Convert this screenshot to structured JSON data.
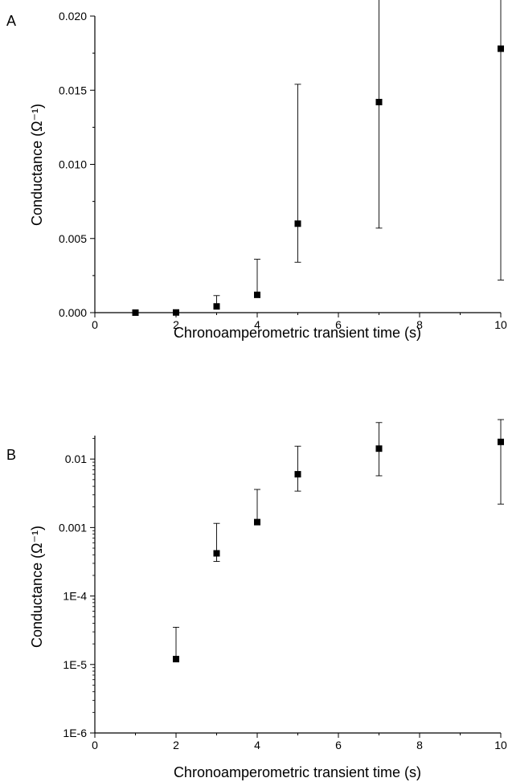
{
  "chart_data": [
    {
      "panel": "A",
      "type": "scatter",
      "xlabel": "Chronoamperometric transient time (s)",
      "ylabel": "Conductance (Ω⁻¹)",
      "xlim": [
        0,
        10
      ],
      "ylim": [
        0,
        0.02
      ],
      "yscale": "linear",
      "xticks": [
        0,
        2,
        4,
        6,
        8,
        10
      ],
      "xtick_labels": [
        "0",
        "2",
        "4",
        "6",
        "8",
        "10"
      ],
      "yticks": [
        0,
        0.005,
        0.01,
        0.015,
        0.02
      ],
      "ytick_labels": [
        "0.000",
        "0.005",
        "0.010",
        "0.015",
        "0.020"
      ],
      "grid": false,
      "points": [
        {
          "x": 1,
          "y": 3e-07,
          "err_low": 3e-07,
          "err_high": 3e-07
        },
        {
          "x": 2,
          "y": 1.2e-05,
          "err_low": 1.2e-05,
          "err_high": 2.3e-05
        },
        {
          "x": 3,
          "y": 0.00042,
          "err_low": 0.0001,
          "err_high": 0.00073
        },
        {
          "x": 4,
          "y": 0.0012,
          "err_low": 4.8e-05,
          "err_high": 0.0024
        },
        {
          "x": 5,
          "y": 0.006,
          "err_low": 0.0026,
          "err_high": 0.0094
        },
        {
          "x": 7,
          "y": 0.0142,
          "err_low": 0.0085,
          "err_high": 0.0199
        },
        {
          "x": 10,
          "y": 0.0178,
          "err_low": 0.0156,
          "err_high": 0.0199
        }
      ]
    },
    {
      "panel": "B",
      "type": "scatter",
      "xlabel": "Chronoamperometric transient time (s)",
      "ylabel": "Conductance (Ω⁻¹)",
      "xlim": [
        0,
        10
      ],
      "ylim": [
        1e-06,
        0.022
      ],
      "yscale": "log",
      "xticks": [
        0,
        2,
        4,
        6,
        8,
        10
      ],
      "xtick_labels": [
        "0",
        "2",
        "4",
        "6",
        "8",
        "10"
      ],
      "yticks": [
        1e-06,
        1e-05,
        0.0001,
        0.001,
        0.01
      ],
      "ytick_labels": [
        "1E-6",
        "1E-5",
        "1E-4",
        "0.001",
        "0.01"
      ],
      "grid": false,
      "points": [
        {
          "x": 2,
          "y": 1.2e-05,
          "err_low": 1.1e-06,
          "err_high": 2.3e-05
        },
        {
          "x": 3,
          "y": 0.00042,
          "err_low": 0.0001,
          "err_high": 0.00073
        },
        {
          "x": 4,
          "y": 0.0012,
          "err_low": 4.8e-05,
          "err_high": 0.0024
        },
        {
          "x": 5,
          "y": 0.006,
          "err_low": 0.0026,
          "err_high": 0.0094
        },
        {
          "x": 7,
          "y": 0.0142,
          "err_low": 0.0085,
          "err_high": 0.0199
        },
        {
          "x": 10,
          "y": 0.0178,
          "err_low": 0.0156,
          "err_high": 0.0199
        }
      ]
    }
  ]
}
